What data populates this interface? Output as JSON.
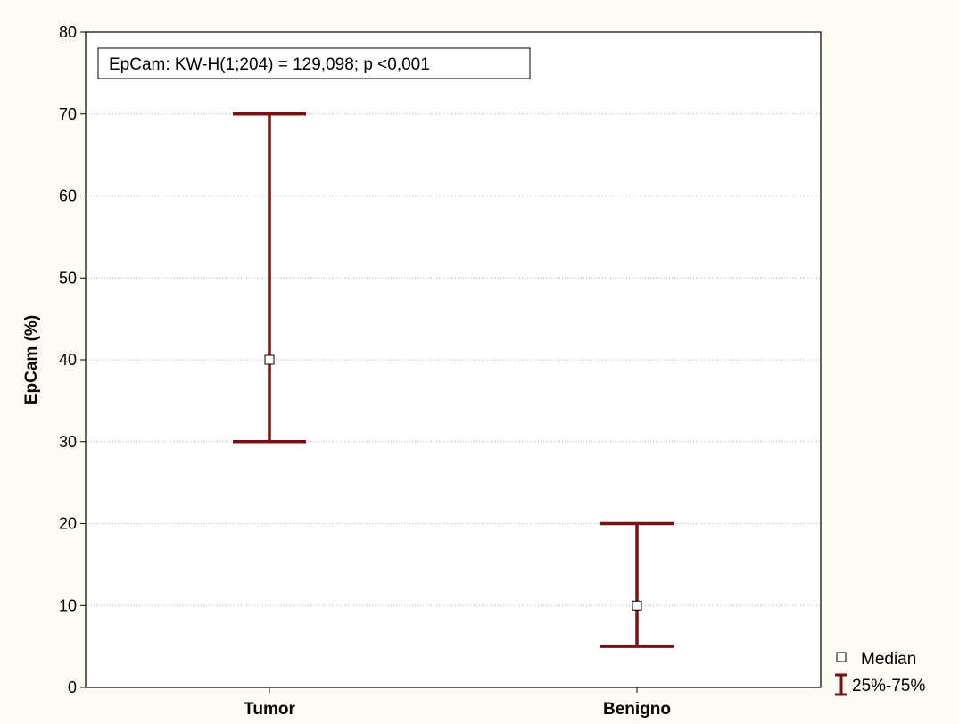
{
  "chart_data": {
    "type": "error-bar",
    "annotation": "EpCam:  KW-H(1;204) = 129,098; p <0,001",
    "xlabel": "",
    "ylabel": "EpCam (%)",
    "categories": [
      "Tumor",
      "Benigno"
    ],
    "ylim": [
      0,
      80
    ],
    "yticks": [
      "0",
      "10",
      "20",
      "30",
      "40",
      "50",
      "60",
      "70",
      "80"
    ],
    "grid": true,
    "series": [
      {
        "name": "Median",
        "values": [
          40,
          10
        ]
      },
      {
        "name": "25%-75%",
        "low": [
          30,
          5
        ],
        "high": [
          70,
          20
        ]
      }
    ],
    "legend": {
      "placement": "bottom-right",
      "items": [
        "Median",
        "25%-75%"
      ]
    },
    "colors": {
      "bar": "#7a1010",
      "grid": "#b8b8b8",
      "background": "#fdfbf4",
      "plot": "#ffffff"
    }
  }
}
